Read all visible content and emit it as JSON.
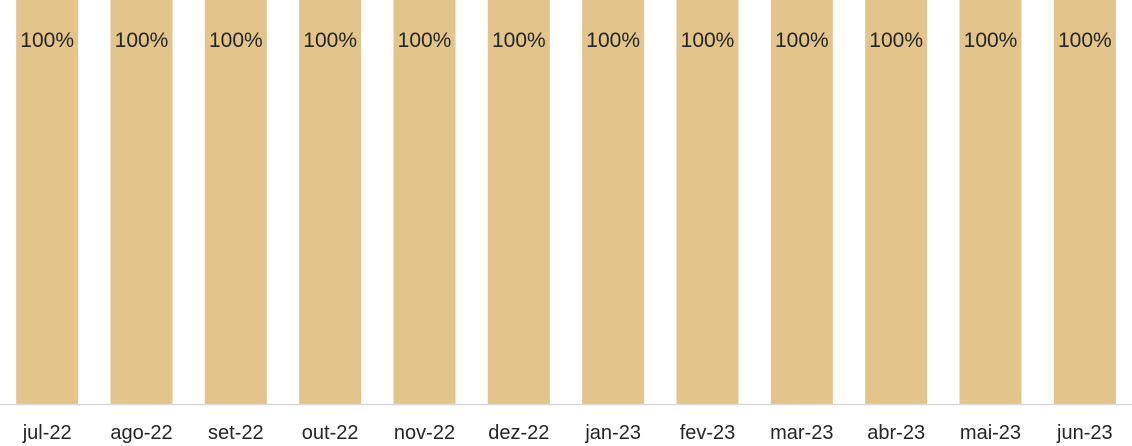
{
  "chart_data": {
    "type": "bar",
    "categories": [
      "jul-22",
      "ago-22",
      "set-22",
      "out-22",
      "nov-22",
      "dez-22",
      "jan-23",
      "fev-23",
      "mar-23",
      "abr-23",
      "mai-23",
      "jun-23"
    ],
    "values": [
      100,
      100,
      100,
      100,
      100,
      100,
      100,
      100,
      100,
      100,
      100,
      100
    ],
    "data_labels": [
      "100%",
      "100%",
      "100%",
      "100%",
      "100%",
      "100%",
      "100%",
      "100%",
      "100%",
      "100%",
      "100%",
      "100%"
    ],
    "ylim": [
      0,
      100
    ],
    "unit": "%",
    "grid": false,
    "legend": "none",
    "colors": {
      "bar": "#E3C48A",
      "axis": "#D9D9D9",
      "text": "#262626"
    }
  }
}
